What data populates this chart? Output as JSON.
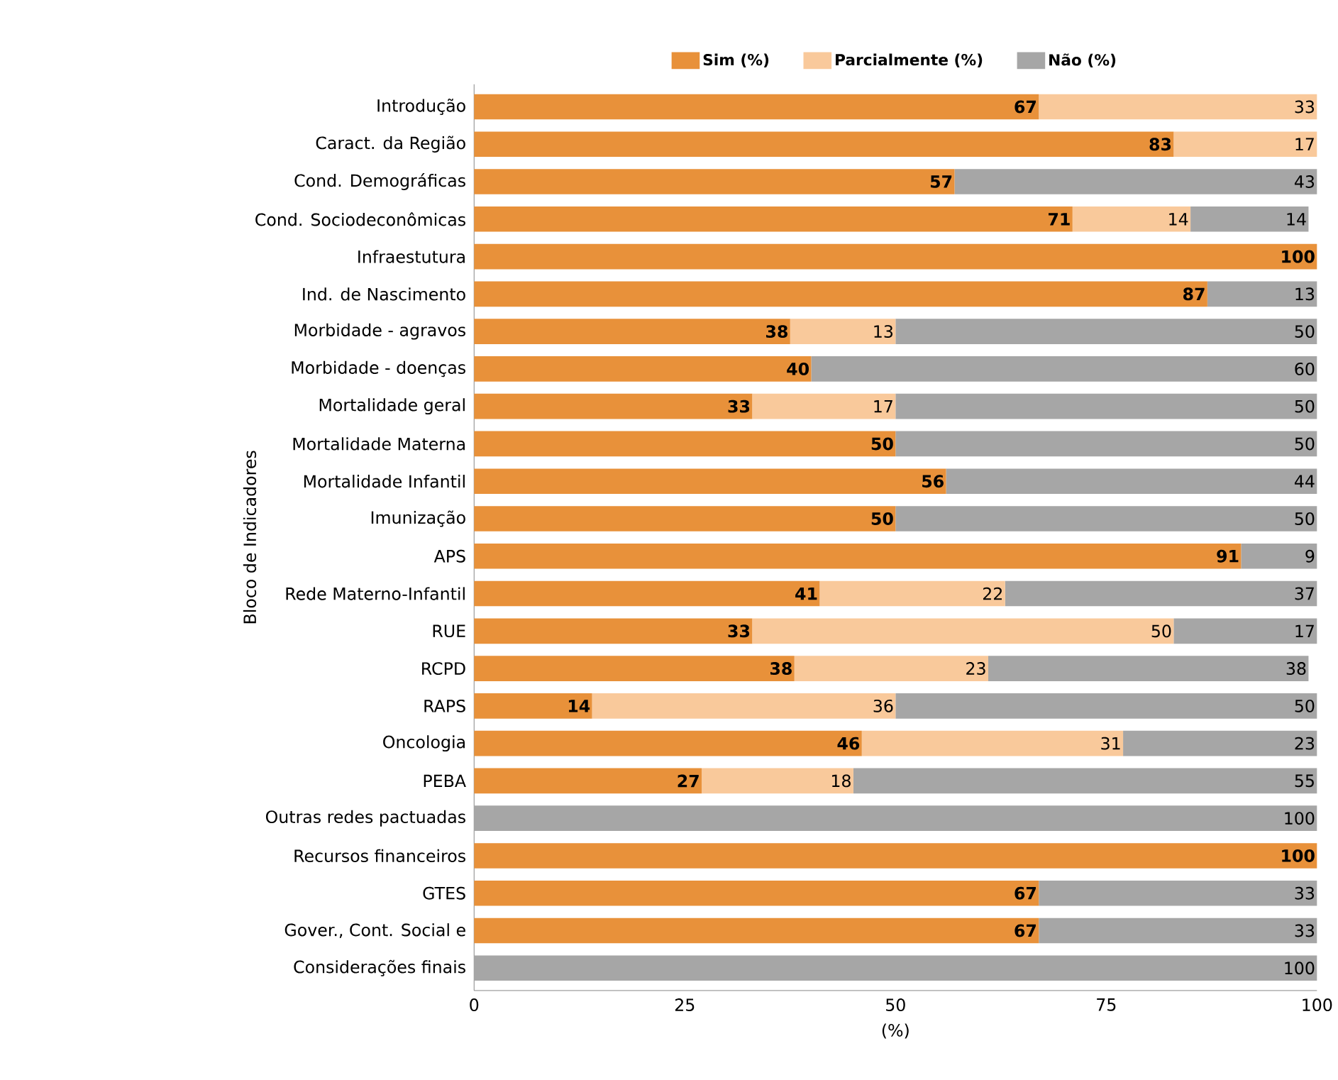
{
  "chart_data": {
    "type": "bar",
    "orientation": "horizontal",
    "stacked": true,
    "xlabel": "(%)",
    "ylabel": "Bloco de Indicadores",
    "legend": "top",
    "categories": [
      "Introdução",
      "Caract. da Região",
      "Cond. Demográficas",
      "Cond. Sociodeconômicas",
      "Infraestutura",
      "Ind. de Nascimento",
      "Morbidade - agravos",
      "Morbidade - doenças",
      "Mortalidade geral",
      "Mortalidade Materna",
      "Mortalidade Infantil",
      "Imunização",
      "APS",
      "Rede Materno-Infantil",
      "RUE",
      "RCPD",
      "RAPS",
      "Oncologia",
      "PEBA",
      "Outras redes pactuadas",
      "Recursos financeiros",
      "GTES",
      "Gover., Cont. Social e",
      "Considerações finais"
    ],
    "xlim": [
      0,
      100
    ],
    "xticks": [
      0,
      25,
      50,
      75,
      100
    ],
    "series": [
      {
        "name": "Sim (%)",
        "color": "#e8913a",
        "values": [
          67,
          83,
          57,
          71,
          100,
          87,
          37.5,
          40,
          33,
          50,
          56,
          50,
          91,
          41,
          33,
          38,
          14,
          46,
          27,
          0,
          100,
          67,
          67,
          0
        ],
        "value_labels": [
          "67",
          "83",
          "57",
          "71",
          "100",
          "87",
          "38",
          "40",
          "33",
          "50",
          "56",
          "50",
          "91",
          "41",
          "33",
          "38",
          "14",
          "46",
          "27",
          null,
          "100",
          "67",
          "67",
          null
        ]
      },
      {
        "name": "Parcialmente (%)",
        "color": "#f9c99b",
        "values": [
          33,
          17,
          0,
          14,
          0,
          0,
          12.5,
          0,
          17,
          0,
          0,
          0,
          0,
          22,
          50,
          23,
          36,
          31,
          18,
          0,
          0,
          0,
          0,
          0
        ],
        "value_labels": [
          "33",
          "17",
          null,
          "14",
          null,
          null,
          "13",
          null,
          "17",
          null,
          null,
          null,
          null,
          "22",
          "50",
          "23",
          "36",
          "31",
          "18",
          null,
          null,
          null,
          null,
          null
        ]
      },
      {
        "name": "Não (%)",
        "color": "#a6a6a6",
        "values": [
          0,
          0,
          43,
          14,
          0,
          13,
          50,
          60,
          50,
          50,
          44,
          50,
          9,
          37,
          17,
          38,
          50,
          23,
          55,
          100,
          0,
          33,
          33,
          100
        ],
        "value_labels": [
          null,
          null,
          "43",
          "14",
          null,
          "13",
          "50",
          "60",
          "50",
          "50",
          "44",
          "50",
          "9",
          "37",
          "17",
          "38",
          "50",
          "23",
          "55",
          "100",
          null,
          "33",
          "33",
          "100"
        ]
      }
    ]
  }
}
